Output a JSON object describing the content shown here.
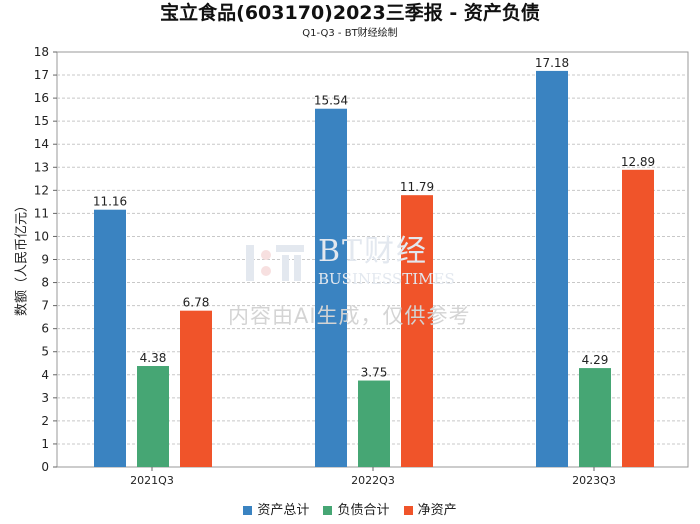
{
  "header": {
    "title": "宝立食品(603170)2023三季报 - 资产负债",
    "subtitle": "Q1-Q3 - BT财经绘制"
  },
  "watermark": {
    "brand": "BT财经",
    "brand_en": "BUSINESSTIMES",
    "notice": "内容由AI生成，仅供参考"
  },
  "chart_data": {
    "type": "bar",
    "title": "宝立食品(603170)2023三季报 - 资产负债",
    "subtitle": "Q1-Q3 - BT财经绘制",
    "xlabel": "",
    "ylabel": "数额（人民币亿元）",
    "ylim": [
      0,
      18
    ],
    "yticks": [
      "0",
      "1",
      "2",
      "3",
      "4",
      "5",
      "6",
      "7",
      "8",
      "9",
      "10",
      "11",
      "12",
      "13",
      "14",
      "15",
      "16",
      "17",
      "18"
    ],
    "grid": true,
    "legend_position": "bottom",
    "categories": [
      "2021Q3",
      "2022Q3",
      "2023Q3"
    ],
    "series": [
      {
        "name": "资产总计",
        "color": "#3a83c1",
        "values": [
          11.16,
          15.54,
          17.18
        ]
      },
      {
        "name": "负债合计",
        "color": "#46a674",
        "values": [
          4.38,
          3.75,
          4.29
        ]
      },
      {
        "name": "净资产",
        "color": "#f0542a",
        "values": [
          6.78,
          11.79,
          12.89
        ]
      }
    ]
  }
}
